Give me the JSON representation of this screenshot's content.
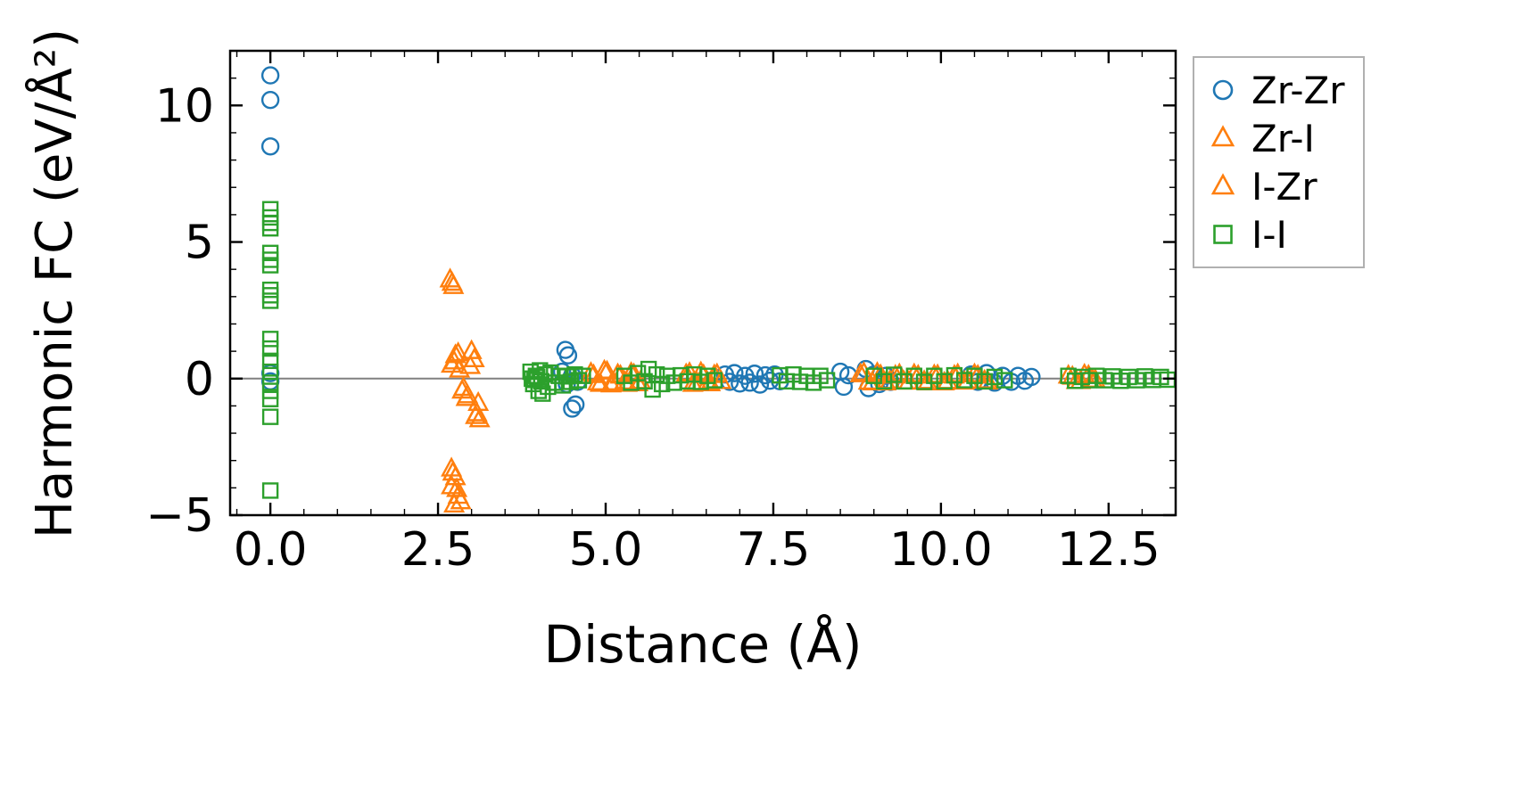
{
  "chart_data": {
    "type": "scatter",
    "title": "",
    "xlabel": "Distance (Å)",
    "ylabel": "Harmonic FC (eV/Å²)",
    "xlim": [
      -0.6,
      13.5
    ],
    "ylim": [
      -5,
      12
    ],
    "xticks": [
      0.0,
      2.5,
      5.0,
      7.5,
      10.0,
      12.5
    ],
    "xtick_labels": [
      "0.0",
      "2.5",
      "5.0",
      "7.5",
      "10.0",
      "12.5"
    ],
    "yticks": [
      -5,
      0,
      5,
      10
    ],
    "ytick_labels": [
      "−5",
      "0",
      "5",
      "10"
    ],
    "x_minor_step": 0.5,
    "y_minor_step": 1,
    "grid": false,
    "zero_line_color": "#808080",
    "axis_color": "#000000",
    "legend_position": "outside-right-top",
    "series": [
      {
        "name": "Zr-Zr",
        "marker": "circle",
        "color": "#1f77b4",
        "points": [
          [
            0,
            11.1
          ],
          [
            0,
            10.2
          ],
          [
            0,
            8.5
          ],
          [
            0,
            0.2
          ],
          [
            0,
            -0.1
          ],
          [
            4.4,
            1.05
          ],
          [
            4.44,
            0.85
          ],
          [
            4.5,
            -1.1
          ],
          [
            4.55,
            -0.95
          ],
          [
            4.35,
            0.25
          ],
          [
            4.42,
            -0.2
          ],
          [
            4.5,
            0.12
          ],
          [
            4.58,
            -0.12
          ],
          [
            6.78,
            0.15
          ],
          [
            6.85,
            -0.12
          ],
          [
            6.92,
            0.2
          ],
          [
            7.0,
            -0.18
          ],
          [
            7.08,
            0.1
          ],
          [
            7.15,
            -0.15
          ],
          [
            7.22,
            0.18
          ],
          [
            7.3,
            -0.22
          ],
          [
            7.38,
            0.12
          ],
          [
            7.45,
            -0.08
          ],
          [
            7.52,
            0.15
          ],
          [
            7.6,
            -0.1
          ],
          [
            8.5,
            0.25
          ],
          [
            8.55,
            -0.3
          ],
          [
            8.62,
            0.12
          ],
          [
            8.88,
            0.35
          ],
          [
            8.92,
            -0.35
          ],
          [
            9.0,
            0.15
          ],
          [
            9.08,
            -0.2
          ],
          [
            9.18,
            0.1
          ],
          [
            9.25,
            -0.12
          ],
          [
            10.45,
            0.15
          ],
          [
            10.55,
            -0.12
          ],
          [
            10.68,
            0.2
          ],
          [
            10.8,
            -0.15
          ],
          [
            10.92,
            0.1
          ],
          [
            11.05,
            -0.12
          ],
          [
            11.15,
            0.1
          ],
          [
            11.25,
            -0.08
          ],
          [
            11.35,
            0.06
          ]
        ]
      },
      {
        "name": "Zr-I",
        "marker": "triangle",
        "color": "#ff7f0e",
        "points": [
          [
            2.68,
            3.62
          ],
          [
            2.73,
            3.38
          ],
          [
            2.7,
            0.5
          ],
          [
            2.76,
            0.85
          ],
          [
            2.82,
            0.32
          ],
          [
            2.88,
            -0.35
          ],
          [
            2.94,
            -0.62
          ],
          [
            3.0,
            1.0
          ],
          [
            3.04,
            0.7
          ],
          [
            3.08,
            -1.28
          ],
          [
            3.12,
            -1.5
          ],
          [
            2.7,
            -3.3
          ],
          [
            2.76,
            -3.62
          ],
          [
            2.7,
            -3.95
          ],
          [
            2.8,
            -4.3
          ],
          [
            2.74,
            -4.62
          ],
          [
            4.78,
            0.2
          ],
          [
            4.88,
            -0.15
          ],
          [
            4.98,
            0.28
          ],
          [
            5.08,
            -0.22
          ],
          [
            5.18,
            0.15
          ],
          [
            5.28,
            -0.12
          ],
          [
            5.38,
            0.2
          ],
          [
            5.48,
            -0.18
          ],
          [
            6.2,
            0.15
          ],
          [
            6.3,
            -0.2
          ],
          [
            6.42,
            0.22
          ],
          [
            6.52,
            -0.15
          ],
          [
            6.62,
            0.12
          ],
          [
            6.72,
            -0.1
          ],
          [
            8.8,
            0.15
          ],
          [
            8.92,
            -0.12
          ],
          [
            9.05,
            0.2
          ],
          [
            9.18,
            -0.15
          ],
          [
            9.32,
            0.1
          ],
          [
            9.45,
            -0.12
          ],
          [
            9.6,
            0.15
          ],
          [
            9.75,
            -0.1
          ],
          [
            9.9,
            0.12
          ],
          [
            10.05,
            -0.15
          ],
          [
            10.2,
            0.1
          ],
          [
            10.35,
            -0.12
          ],
          [
            10.5,
            0.15
          ],
          [
            10.65,
            -0.08
          ],
          [
            11.9,
            0.1
          ],
          [
            12.02,
            -0.1
          ],
          [
            12.14,
            0.14
          ],
          [
            12.26,
            -0.06
          ]
        ]
      },
      {
        "name": "I-Zr",
        "marker": "triangle",
        "color": "#ff7f0e",
        "points": [
          [
            2.71,
            3.5
          ],
          [
            2.74,
            0.62
          ],
          [
            2.8,
            0.92
          ],
          [
            2.86,
            -0.45
          ],
          [
            2.92,
            -0.72
          ],
          [
            2.98,
            0.45
          ],
          [
            3.06,
            -1.38
          ],
          [
            3.1,
            -0.9
          ],
          [
            2.72,
            -3.45
          ],
          [
            2.78,
            -4.05
          ],
          [
            2.84,
            -4.5
          ],
          [
            4.82,
            0.12
          ],
          [
            4.92,
            -0.2
          ],
          [
            5.02,
            0.25
          ],
          [
            5.12,
            -0.15
          ],
          [
            5.22,
            0.1
          ],
          [
            5.32,
            -0.2
          ],
          [
            5.42,
            0.15
          ],
          [
            5.52,
            -0.1
          ],
          [
            6.25,
            0.2
          ],
          [
            6.36,
            -0.15
          ],
          [
            6.46,
            0.12
          ],
          [
            6.56,
            -0.18
          ],
          [
            6.66,
            0.15
          ],
          [
            8.85,
            0.2
          ],
          [
            8.98,
            -0.15
          ],
          [
            9.1,
            0.12
          ],
          [
            9.24,
            -0.1
          ],
          [
            9.38,
            0.15
          ],
          [
            9.52,
            -0.12
          ],
          [
            9.66,
            0.1
          ],
          [
            9.8,
            -0.15
          ],
          [
            9.95,
            0.12
          ],
          [
            10.1,
            -0.1
          ],
          [
            10.25,
            0.15
          ],
          [
            10.4,
            -0.08
          ],
          [
            10.55,
            0.1
          ],
          [
            10.7,
            -0.12
          ],
          [
            11.96,
            0.06
          ],
          [
            12.08,
            -0.1
          ],
          [
            12.2,
            0.1
          ],
          [
            12.3,
            -0.05
          ]
        ]
      },
      {
        "name": "I-I",
        "marker": "square",
        "color": "#2ca02c",
        "points": [
          [
            0,
            6.2
          ],
          [
            0,
            5.9
          ],
          [
            0,
            5.7
          ],
          [
            0,
            5.5
          ],
          [
            0,
            4.6
          ],
          [
            0,
            4.35
          ],
          [
            0,
            4.15
          ],
          [
            0,
            3.25
          ],
          [
            0,
            3.05
          ],
          [
            0,
            2.85
          ],
          [
            0,
            1.45
          ],
          [
            0,
            1.1
          ],
          [
            0,
            0.65
          ],
          [
            0,
            0.25
          ],
          [
            0,
            -0.15
          ],
          [
            0,
            -0.45
          ],
          [
            0,
            -0.75
          ],
          [
            0,
            -1.4
          ],
          [
            0,
            -4.1
          ],
          [
            3.88,
            0.25
          ],
          [
            3.9,
            0.0
          ],
          [
            3.92,
            -0.2
          ],
          [
            3.94,
            -0.05
          ],
          [
            3.96,
            0.1
          ],
          [
            3.98,
            0.05
          ],
          [
            4.0,
            -0.45
          ],
          [
            4.02,
            0.3
          ],
          [
            4.04,
            -0.1
          ],
          [
            4.06,
            -0.55
          ],
          [
            4.1,
            0.15
          ],
          [
            4.14,
            -0.3
          ],
          [
            4.18,
            0.22
          ],
          [
            4.24,
            -0.15
          ],
          [
            4.3,
            0.1
          ],
          [
            4.36,
            -0.25
          ],
          [
            4.42,
            0.08
          ],
          [
            4.48,
            -0.12
          ],
          [
            4.54,
            0.15
          ],
          [
            4.6,
            -0.06
          ],
          [
            4.66,
            0.1
          ],
          [
            5.28,
            0.1
          ],
          [
            5.38,
            -0.15
          ],
          [
            5.48,
            0.2
          ],
          [
            5.58,
            -0.1
          ],
          [
            5.64,
            0.35
          ],
          [
            5.7,
            -0.4
          ],
          [
            5.76,
            0.15
          ],
          [
            5.84,
            -0.2
          ],
          [
            5.92,
            0.1
          ],
          [
            6.02,
            -0.15
          ],
          [
            6.12,
            0.12
          ],
          [
            6.22,
            -0.1
          ],
          [
            6.32,
            0.15
          ],
          [
            6.42,
            -0.12
          ],
          [
            6.52,
            0.1
          ],
          [
            6.62,
            -0.06
          ],
          [
            7.6,
            0.12
          ],
          [
            7.7,
            -0.1
          ],
          [
            7.8,
            0.15
          ],
          [
            7.9,
            -0.12
          ],
          [
            8.0,
            0.1
          ],
          [
            8.1,
            -0.15
          ],
          [
            8.2,
            0.1
          ],
          [
            8.3,
            -0.06
          ],
          [
            9.0,
            0.1
          ],
          [
            9.15,
            -0.1
          ],
          [
            9.3,
            0.14
          ],
          [
            9.45,
            -0.1
          ],
          [
            9.6,
            0.1
          ],
          [
            9.75,
            -0.12
          ],
          [
            9.9,
            0.1
          ],
          [
            10.05,
            -0.1
          ],
          [
            10.2,
            0.12
          ],
          [
            10.35,
            -0.06
          ],
          [
            10.5,
            0.1
          ],
          [
            10.65,
            -0.1
          ],
          [
            10.8,
            0.06
          ],
          [
            10.95,
            -0.06
          ],
          [
            11.9,
            0.1
          ],
          [
            12.0,
            -0.08
          ],
          [
            12.1,
            0.06
          ],
          [
            12.2,
            -0.06
          ],
          [
            12.32,
            0.1
          ],
          [
            12.44,
            -0.06
          ],
          [
            12.56,
            0.08
          ],
          [
            12.68,
            -0.08
          ],
          [
            12.8,
            0.06
          ],
          [
            12.92,
            -0.06
          ],
          [
            13.04,
            0.08
          ],
          [
            13.16,
            -0.05
          ],
          [
            13.28,
            0.06
          ],
          [
            13.38,
            -0.04
          ]
        ]
      }
    ]
  }
}
